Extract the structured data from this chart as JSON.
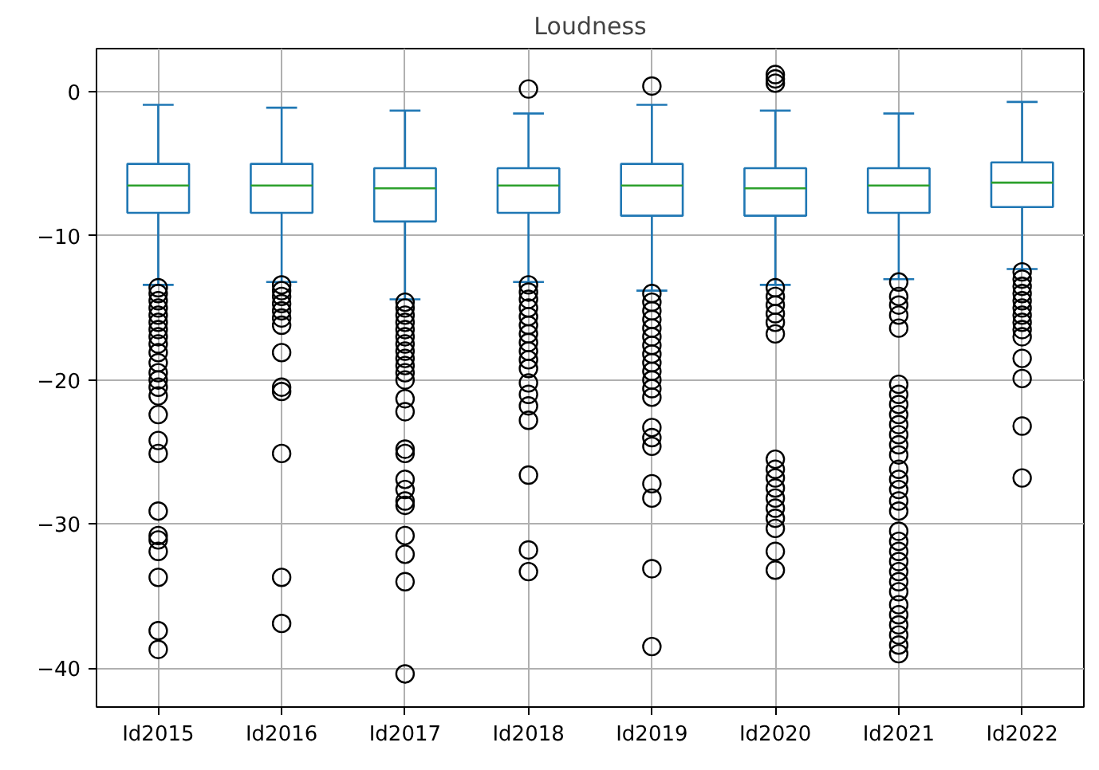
{
  "chart_data": {
    "type": "box",
    "title": "Loudness",
    "categories": [
      "Id2015",
      "Id2016",
      "Id2017",
      "Id2018",
      "Id2019",
      "Id2020",
      "Id2021",
      "Id2022"
    ],
    "colors": [
      "#1f77b4",
      "#1f77b4",
      "#1f77b4",
      "#1f77b4",
      "#1f77b4",
      "#1f77b4",
      "#1f77b4",
      "#1f77b4"
    ],
    "boxes": [
      {
        "low": -13.4,
        "q1": -8.4,
        "median": -6.5,
        "q3": -5.0,
        "high": -0.9,
        "outliers": [
          -13.6,
          -14.0,
          -14.5,
          -15.0,
          -15.5,
          -16.0,
          -16.5,
          -17.0,
          -17.5,
          -18.1,
          -18.8,
          -19.5,
          -20.0,
          -20.5,
          -21.1,
          -22.4,
          -24.2,
          -25.1,
          -29.1,
          -30.8,
          -31.1,
          -31.9,
          -33.7,
          -37.4,
          -38.7
        ]
      },
      {
        "low": -13.2,
        "q1": -8.4,
        "median": -6.5,
        "q3": -5.0,
        "high": -1.1,
        "outliers": [
          -13.4,
          -13.8,
          -14.2,
          -14.7,
          -15.2,
          -15.7,
          -16.2,
          -18.1,
          -20.5,
          -20.8,
          -25.1,
          -33.7,
          -36.9
        ]
      },
      {
        "low": -14.4,
        "q1": -9.0,
        "median": -6.7,
        "q3": -5.3,
        "high": -1.3,
        "outliers": [
          -14.6,
          -15.0,
          -15.5,
          -16.0,
          -16.5,
          -17.0,
          -17.5,
          -18.0,
          -18.5,
          -19.0,
          -19.5,
          -20.0,
          -21.3,
          -22.2,
          -24.8,
          -25.1,
          -26.9,
          -27.6,
          -28.4,
          -28.7,
          -30.8,
          -32.1,
          -34.0,
          -40.4
        ]
      },
      {
        "low": -13.2,
        "q1": -8.4,
        "median": -6.5,
        "q3": -5.3,
        "high": -1.5,
        "outliers": [
          0.2,
          -13.4,
          -13.9,
          -14.4,
          -15.0,
          -15.6,
          -16.2,
          -16.8,
          -17.4,
          -18.0,
          -18.6,
          -19.2,
          -20.2,
          -21.0,
          -21.8,
          -22.8,
          -26.6,
          -31.8,
          -33.3
        ]
      },
      {
        "low": -13.8,
        "q1": -8.6,
        "median": -6.5,
        "q3": -5.0,
        "high": -0.9,
        "outliers": [
          0.4,
          -14.0,
          -14.6,
          -15.2,
          -15.8,
          -16.4,
          -17.0,
          -17.6,
          -18.2,
          -18.8,
          -19.4,
          -20.0,
          -20.6,
          -21.2,
          -23.3,
          -24.0,
          -24.6,
          -27.2,
          -28.2,
          -33.1,
          -38.5
        ]
      },
      {
        "low": -13.4,
        "q1": -8.6,
        "median": -6.7,
        "q3": -5.3,
        "high": -1.3,
        "outliers": [
          1.2,
          0.9,
          0.6,
          -13.6,
          -14.2,
          -14.8,
          -15.4,
          -16.0,
          -16.8,
          -25.5,
          -26.2,
          -26.8,
          -27.5,
          -28.2,
          -28.9,
          -29.6,
          -30.3,
          -31.9,
          -33.2
        ]
      },
      {
        "low": -13.0,
        "q1": -8.4,
        "median": -6.5,
        "q3": -5.3,
        "high": -1.5,
        "outliers": [
          -13.2,
          -14.2,
          -14.8,
          -15.5,
          -16.4,
          -20.3,
          -21.0,
          -21.7,
          -22.4,
          -23.1,
          -23.8,
          -24.5,
          -25.2,
          -26.2,
          -26.9,
          -27.6,
          -28.4,
          -29.1,
          -30.5,
          -31.2,
          -31.9,
          -32.6,
          -33.3,
          -34.0,
          -34.7,
          -35.6,
          -36.3,
          -37.0,
          -37.7,
          -38.4,
          -39.0
        ]
      },
      {
        "low": -12.3,
        "q1": -8.0,
        "median": -6.3,
        "q3": -4.9,
        "high": -0.7,
        "outliers": [
          -12.5,
          -13.0,
          -13.5,
          -14.0,
          -14.5,
          -15.0,
          -15.5,
          -16.0,
          -16.5,
          -17.0,
          -18.5,
          -19.9,
          -23.2,
          -26.8
        ]
      }
    ],
    "ylim": [
      -42.7,
      3.0
    ],
    "yticks": [
      -40,
      -30,
      -20,
      -10,
      0
    ],
    "grid": true
  }
}
